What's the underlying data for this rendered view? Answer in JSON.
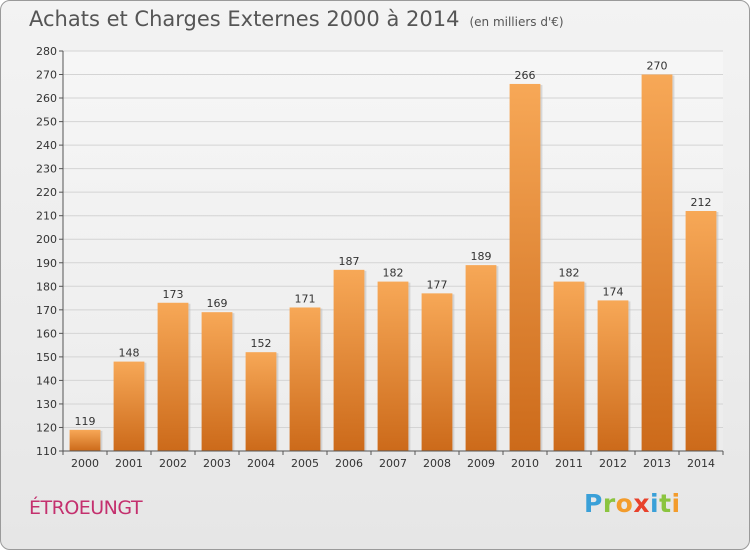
{
  "page": {
    "title": "Achats et Charges Externes 2000 à 2014",
    "subtitle": "(en milliers d'€)",
    "commune": "ÉTROEUNGT",
    "logo": {
      "letters": [
        "P",
        "r",
        "o",
        "x",
        "i",
        "t",
        "i"
      ],
      "colors": [
        "#3aa0d8",
        "#8bc43f",
        "#f39c2c",
        "#e8412b",
        "#3aa0d8",
        "#8bc43f",
        "#f39c2c"
      ]
    }
  },
  "chart_data": {
    "type": "bar",
    "title": "Achats et Charges Externes 2000 à 2014",
    "subtitle": "(en milliers d'€)",
    "categories": [
      "2000",
      "2001",
      "2002",
      "2003",
      "2004",
      "2005",
      "2006",
      "2007",
      "2008",
      "2009",
      "2010",
      "2011",
      "2012",
      "2013",
      "2014"
    ],
    "values": [
      119,
      148,
      173,
      169,
      152,
      171,
      187,
      182,
      177,
      189,
      266,
      182,
      174,
      270,
      212
    ],
    "ylim": [
      110,
      280
    ],
    "yticks": [
      110,
      120,
      130,
      140,
      150,
      160,
      170,
      180,
      190,
      200,
      210,
      220,
      230,
      240,
      250,
      260,
      270,
      280
    ],
    "grid": true,
    "bar_color_top": "#f7a857",
    "bar_color_bottom": "#cc6a1a"
  }
}
